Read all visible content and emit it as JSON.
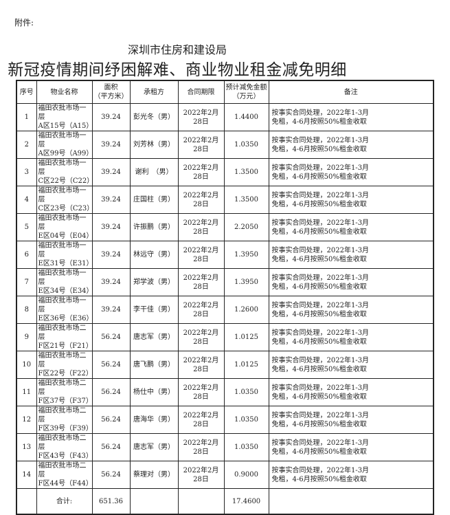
{
  "attachment_label": "附件:",
  "issuer": "深圳市住房和建设局",
  "title": "新冠疫情期间纾困解难、商业物业租金减免明细",
  "table": {
    "headers": {
      "no": "序号",
      "property": "物业名称",
      "area_1": "面积",
      "area_2": "（平方米）",
      "tenant": "承租方",
      "contract": "合同期限",
      "amount_1": "预计减免金额",
      "amount_2": "（万元）",
      "note": "备注"
    },
    "rows": [
      {
        "no": "1",
        "p1": "福田农批市场一层",
        "p2": "A区15号（A15）",
        "area": "39.24",
        "tenant": "彭光冬（男）",
        "contract": "2022年2月28日",
        "amount": "1.4400",
        "n1": "按事实合同处理，2022年1-3月",
        "n2": "免租，4-6月按照50%租金收取"
      },
      {
        "no": "2",
        "p1": "福田农批市场一层",
        "p2": "A区99号（A99）",
        "area": "39.24",
        "tenant": "刘芳林（男）",
        "contract": "2022年2月28日",
        "amount": "1.0350",
        "n1": "按事实合同处理，2022年1-3月",
        "n2": "免租，4-6月按照50%租金收取"
      },
      {
        "no": "3",
        "p1": "福田农批市场一层",
        "p2": "C区22号（C22）",
        "area": "39.24",
        "tenant": "谢利　（男）",
        "contract": "2022年2月28日",
        "amount": "1.3500",
        "n1": "按事实合同处理，2022年1-3月",
        "n2": "免租，4-6月按照50%租金收取"
      },
      {
        "no": "4",
        "p1": "福田农批市场一层",
        "p2": "C区23号（C23）",
        "area": "39.24",
        "tenant": "庄国柱（男）",
        "contract": "2022年2月28日",
        "amount": "1.3500",
        "n1": "按事实合同处理，2022年1-3月",
        "n2": "免租，4-6月按照50%租金收取"
      },
      {
        "no": "5",
        "p1": "福田农批市场一层",
        "p2": "E区04号（E04）",
        "area": "39.24",
        "tenant": "许振鹏（男）",
        "contract": "2022年2月28日",
        "amount": "2.2050",
        "n1": "按事实合同处理，2022年1-3月",
        "n2": "免租，4-6月按照50%租金收取"
      },
      {
        "no": "6",
        "p1": "福田农批市场一层",
        "p2": "E区31号（E31）",
        "area": "39.24",
        "tenant": "林远守（男）",
        "contract": "2022年2月28日",
        "amount": "1.3950",
        "n1": "按事实合同处理，2022年1-3月",
        "n2": "免租，4-6月按照50%租金收取"
      },
      {
        "no": "7",
        "p1": "福田农批市场一层",
        "p2": "E区34号（E34）",
        "area": "39.24",
        "tenant": "郑学波（男）",
        "contract": "2022年2月28日",
        "amount": "1.3950",
        "n1": "按事实合同处理，2022年1-3月",
        "n2": "免租，4-6月按照50%租金收取"
      },
      {
        "no": "8",
        "p1": "福田农批市场一层",
        "p2": "E区36号（E36）",
        "area": "39.24",
        "tenant": "李干佳（男）",
        "contract": "2022年2月28日",
        "amount": "1.2600",
        "n1": "按事实合同处理，2022年1-3月",
        "n2": "免租，4-6月按照50%租金收取"
      },
      {
        "no": "9",
        "p1": "福田农批市场二层",
        "p2": "F区21号（F21）",
        "area": "56.24",
        "tenant": "唐志军（男）",
        "contract": "2022年2月28日",
        "amount": "1.0125",
        "n1": "按事实合同处理，2022年1-3月",
        "n2": "免租，4-6月按照50%租金收取"
      },
      {
        "no": "10",
        "p1": "福田农批市场二层",
        "p2": "F区22号（F22）",
        "area": "56.24",
        "tenant": "唐飞鹏（男）",
        "contract": "2022年2月28日",
        "amount": "1.0125",
        "n1": "按事实合同处理，2022年1-3月",
        "n2": "免租，4-6月按照50%租金收取"
      },
      {
        "no": "11",
        "p1": "福田农批市场二层",
        "p2": "F区37号（F37）",
        "area": "56.24",
        "tenant": "杨仕中（男）",
        "contract": "2022年2月28日",
        "amount": "1.0350",
        "n1": "按事实合同处理，2022年1-3月",
        "n2": "免租，4-6月按照50%租金收取"
      },
      {
        "no": "12",
        "p1": "福田农批市场二层",
        "p2": "F区39号（F39）",
        "area": "56.24",
        "tenant": "唐海华（男）",
        "contract": "2022年2月28日",
        "amount": "1.0350",
        "n1": "按事实合同处理，2022年1-3月",
        "n2": "免租，4-6月按照50%租金收取"
      },
      {
        "no": "13",
        "p1": "福田农批市场二层",
        "p2": "F区43号（F43）",
        "area": "56.24",
        "tenant": "唐志军（男）",
        "contract": "2022年2月28日",
        "amount": "1.0350",
        "n1": "按事实合同处理，2022年1-3月",
        "n2": "免租，4-6月按照50%租金收取"
      },
      {
        "no": "14",
        "p1": "福田农批市场二层",
        "p2": "F区44号（F44）",
        "area": "56.24",
        "tenant": "蔡理对（男）",
        "contract": "2022年2月28日",
        "amount": "0.9000",
        "n1": "按事实合同处理，2022年1-3月",
        "n2": "免租，4-6月按照50%租金收取"
      }
    ],
    "total": {
      "label": "合计:",
      "area": "651.36",
      "amount": "17.4600"
    }
  }
}
